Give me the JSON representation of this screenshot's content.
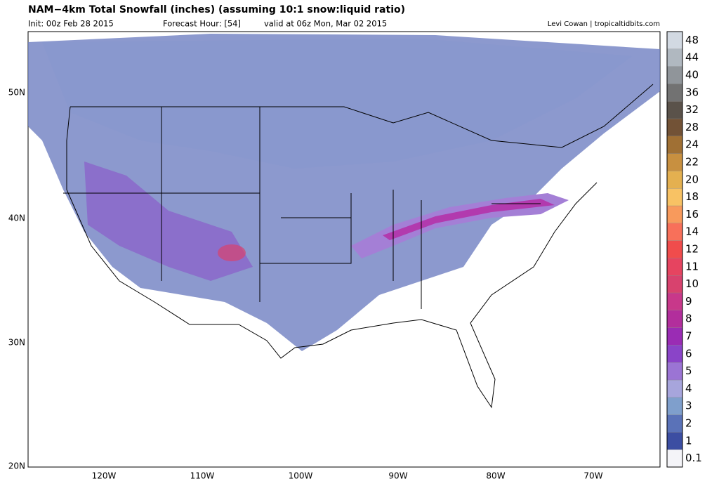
{
  "header": {
    "title": "NAM−4km Total Snowfall (inches) (assuming 10:1 snow:liquid ratio)",
    "init": "Init: 00z Feb 28 2015",
    "forecast_hour": "Forecast Hour: [54]",
    "valid": "valid at 06z Mon, Mar 02 2015",
    "credit": "Levi Cowan | tropicaltidbits.com"
  },
  "map": {
    "lat_labels": [
      "50N",
      "40N",
      "30N",
      "20N"
    ],
    "lon_labels": [
      "120W",
      "110W",
      "100W",
      "90W",
      "80W",
      "70W"
    ]
  },
  "colorbar": {
    "levels": [
      0.1,
      1,
      2,
      3,
      4,
      5,
      6,
      7,
      8,
      9,
      10,
      11,
      12,
      14,
      16,
      18,
      20,
      22,
      24,
      28,
      32,
      36,
      40,
      44,
      48
    ],
    "colors": [
      "#f4f4f8",
      "#3c4ea2",
      "#5a72b8",
      "#7f9fcc",
      "#a7a5dc",
      "#9b74d4",
      "#8a44c8",
      "#9a2cb4",
      "#b22e9c",
      "#c8388a",
      "#d8426e",
      "#e64460",
      "#f04c4c",
      "#f8705a",
      "#f89a5c",
      "#f8c264",
      "#e4b050",
      "#c89040",
      "#a07034",
      "#725236",
      "#5a524a",
      "#727272",
      "#90959a",
      "#b0b8c0",
      "#d2d9e2"
    ]
  }
}
